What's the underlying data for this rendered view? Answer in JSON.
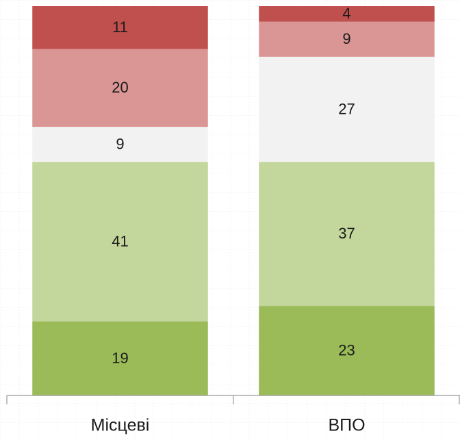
{
  "chart_data": {
    "type": "stacked_bar",
    "categories": [
      "Місцеві",
      "ВПО"
    ],
    "series": [
      {
        "color": "#9bbb59",
        "values": [
          19,
          23
        ]
      },
      {
        "color": "#c3d69b",
        "values": [
          41,
          37
        ]
      },
      {
        "color": "#f2f2f2",
        "values": [
          9,
          27
        ]
      },
      {
        "color": "#d99694",
        "values": [
          20,
          9
        ]
      },
      {
        "color": "#c0504d",
        "values": [
          11,
          4
        ]
      }
    ],
    "ylim": [
      0,
      100
    ]
  }
}
